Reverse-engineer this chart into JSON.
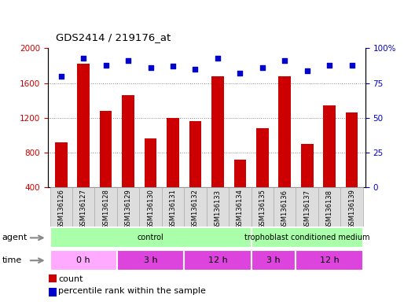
{
  "title": "GDS2414 / 219176_at",
  "samples": [
    "GSM136126",
    "GSM136127",
    "GSM136128",
    "GSM136129",
    "GSM136130",
    "GSM136131",
    "GSM136132",
    "GSM136133",
    "GSM136134",
    "GSM136135",
    "GSM136136",
    "GSM136137",
    "GSM136138",
    "GSM136139"
  ],
  "counts": [
    920,
    1820,
    1280,
    1460,
    960,
    1200,
    1160,
    1680,
    720,
    1080,
    1680,
    900,
    1340,
    1260
  ],
  "percentile_ranks": [
    80,
    93,
    88,
    91,
    86,
    87,
    85,
    93,
    82,
    86,
    91,
    84,
    88,
    88
  ],
  "bar_color": "#cc0000",
  "dot_color": "#0000cc",
  "ylim_left": [
    400,
    2000
  ],
  "ylim_right": [
    0,
    100
  ],
  "yticks_left": [
    400,
    800,
    1200,
    1600,
    2000
  ],
  "yticks_right": [
    0,
    25,
    50,
    75,
    100
  ],
  "agent_label": "agent",
  "time_label": "time",
  "legend_count_label": "count",
  "legend_pct_label": "percentile rank within the sample",
  "bg_color": "#ffffff",
  "bar_bottom": 400,
  "agent_groups": [
    {
      "label": "control",
      "start": 0,
      "end": 8,
      "color": "#aaffaa"
    },
    {
      "label": "trophoblast conditioned medium",
      "start": 9,
      "end": 13,
      "color": "#aaffaa"
    }
  ],
  "time_groups": [
    {
      "label": "0 h",
      "start": 0,
      "end": 2,
      "color": "#ffaaff"
    },
    {
      "label": "3 h",
      "start": 3,
      "end": 5,
      "color": "#dd44dd"
    },
    {
      "label": "12 h",
      "start": 6,
      "end": 8,
      "color": "#dd44dd"
    },
    {
      "label": "3 h",
      "start": 9,
      "end": 10,
      "color": "#dd44dd"
    },
    {
      "label": "12 h",
      "start": 11,
      "end": 13,
      "color": "#dd44dd"
    }
  ]
}
